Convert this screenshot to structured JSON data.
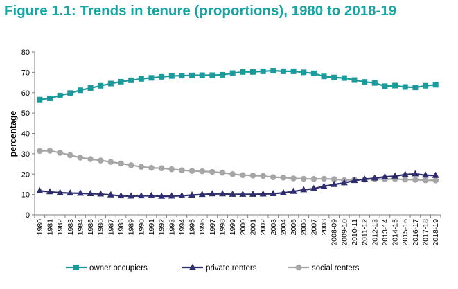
{
  "page": {
    "title": "Figure 1.1: Trends in tenure (proportions), 1980 to 2018-19"
  },
  "chart_data": {
    "type": "line",
    "title": "Figure 1.1: Trends in tenure (proportions), 1980 to 2018-19",
    "xlabel": "",
    "ylabel": "percentage",
    "ylim": [
      0,
      80
    ],
    "yticks": [
      0,
      10,
      20,
      30,
      40,
      50,
      60,
      70,
      80
    ],
    "grid": false,
    "legend_position": "bottom",
    "categories": [
      "1980",
      "1981",
      "1982",
      "1983",
      "1984",
      "1985",
      "1986",
      "1987",
      "1988",
      "1989",
      "1990",
      "1991",
      "1992",
      "1993",
      "1994",
      "1995",
      "1996",
      "1997",
      "1998",
      "1999",
      "2000",
      "2001",
      "2002",
      "2003",
      "2004",
      "2005",
      "2006",
      "2007",
      "2008",
      "2008-09",
      "2009-10",
      "2010-11",
      "2011-12",
      "2012-13",
      "2013-14",
      "2014-15",
      "2015-16",
      "2016-17",
      "2017-18",
      "2018-19"
    ],
    "series": [
      {
        "name": "owner occupiers",
        "color": "#1a9a9a",
        "marker": "square",
        "values": [
          56.6,
          57.2,
          58.6,
          59.8,
          61.2,
          62.3,
          63.4,
          64.5,
          65.4,
          66.1,
          66.8,
          67.3,
          67.8,
          68.2,
          68.4,
          68.5,
          68.6,
          68.6,
          68.8,
          69.6,
          70.2,
          70.2,
          70.5,
          70.8,
          70.5,
          70.5,
          70.0,
          69.5,
          68.0,
          67.5,
          67.2,
          66.2,
          65.3,
          64.8,
          63.2,
          63.5,
          62.8,
          62.6,
          63.4,
          63.9
        ]
      },
      {
        "name": "private renters",
        "color": "#2e2e6e",
        "marker": "triangle",
        "values": [
          11.8,
          11.3,
          10.9,
          10.7,
          10.6,
          10.4,
          10.2,
          9.8,
          9.3,
          9.2,
          9.3,
          9.4,
          9.1,
          9.2,
          9.4,
          9.7,
          10.0,
          10.3,
          10.3,
          10.1,
          10.1,
          10.1,
          10.2,
          10.4,
          10.8,
          11.5,
          12.3,
          12.9,
          14.0,
          14.9,
          15.7,
          16.8,
          17.5,
          18.0,
          18.7,
          19.0,
          19.8,
          20.1,
          19.5,
          19.3
        ]
      },
      {
        "name": "social renters",
        "color": "#a6a6a6",
        "marker": "circle",
        "values": [
          31.4,
          31.5,
          30.5,
          29.3,
          28.1,
          27.4,
          26.7,
          26.0,
          25.2,
          24.4,
          23.6,
          23.1,
          22.9,
          22.4,
          21.9,
          21.6,
          21.4,
          21.1,
          20.7,
          20.0,
          19.5,
          19.3,
          19.1,
          18.5,
          18.3,
          17.9,
          17.7,
          17.6,
          17.7,
          17.5,
          17.0,
          17.3,
          17.3,
          17.6,
          17.5,
          17.6,
          17.3,
          17.2,
          17.0,
          16.9
        ]
      }
    ]
  }
}
